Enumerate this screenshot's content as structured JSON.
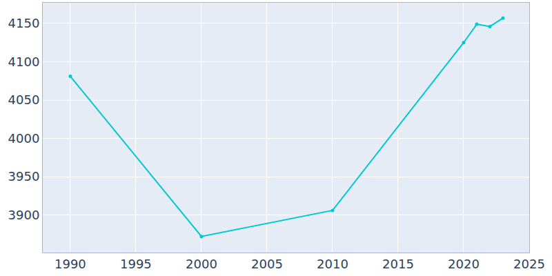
{
  "chart_data": {
    "type": "line",
    "x": [
      1990,
      2000,
      2010,
      2020,
      2021,
      2022,
      2023
    ],
    "values": [
      4081,
      3872,
      3906,
      4125,
      4149,
      4146,
      4157
    ],
    "color": "#00c8d0",
    "marker": "circle",
    "xlim": [
      1987.9,
      2025
    ],
    "xticks": [
      1990,
      1995,
      2000,
      2005,
      2010,
      2015,
      2020,
      2025
    ],
    "ylim": [
      3851,
      4177
    ],
    "yticks": [
      3900,
      3950,
      4000,
      4050,
      4100,
      4150
    ],
    "grid": true
  }
}
